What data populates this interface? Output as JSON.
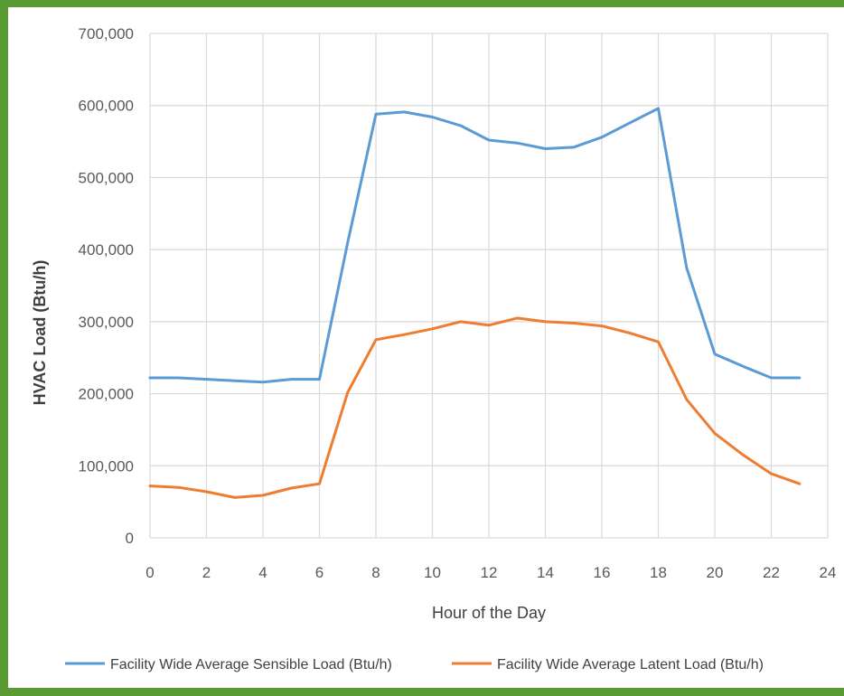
{
  "chart_data": {
    "type": "line",
    "xlabel": "Hour of the Day",
    "ylabel": "HVAC Load (Btu/h)",
    "xlim": [
      0,
      24
    ],
    "ylim": [
      0,
      700000
    ],
    "x_ticks": [
      0,
      2,
      4,
      6,
      8,
      10,
      12,
      14,
      16,
      18,
      20,
      22,
      24
    ],
    "y_ticks": [
      0,
      100000,
      200000,
      300000,
      400000,
      500000,
      600000,
      700000
    ],
    "y_tick_labels": [
      "0",
      "100,000",
      "200,000",
      "300,000",
      "400,000",
      "500,000",
      "600,000",
      "700,000"
    ],
    "grid": true,
    "legend_position": "bottom",
    "x": [
      0,
      1,
      2,
      3,
      4,
      5,
      6,
      7,
      8,
      9,
      10,
      11,
      12,
      13,
      14,
      15,
      16,
      17,
      18,
      19,
      20,
      21,
      22,
      23
    ],
    "series": [
      {
        "name": "Facility Wide Average Sensible Load (Btu/h)",
        "color": "#5b9bd5",
        "values": [
          222000,
          222000,
          220000,
          218000,
          216000,
          220000,
          220000,
          410000,
          588000,
          591000,
          584000,
          572000,
          552000,
          548000,
          540000,
          542000,
          556000,
          576000,
          596000,
          375000,
          255000,
          238000,
          222000,
          222000
        ]
      },
      {
        "name": "Facility Wide Average Latent Load (Btu/h)",
        "color": "#ed7d31",
        "values": [
          72000,
          70000,
          64000,
          56000,
          59000,
          69000,
          75000,
          202000,
          275000,
          282000,
          290000,
          300000,
          295000,
          305000,
          300000,
          298000,
          294000,
          284000,
          272000,
          192000,
          145000,
          115000,
          89000,
          75000
        ]
      }
    ]
  }
}
